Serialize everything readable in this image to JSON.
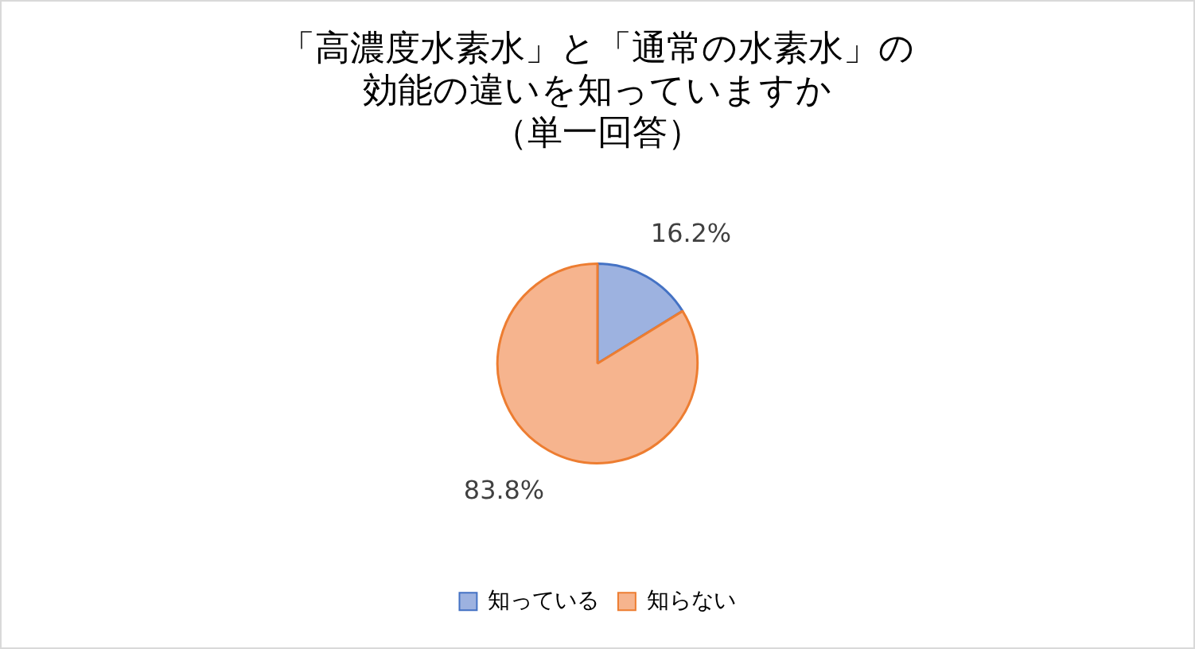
{
  "chart_data": {
    "type": "pie",
    "title": "「高濃度水素水」と「通常の水素水」の効能の違いを知っていますか",
    "subtitle": "（単一回答）",
    "categories": [
      "知っている",
      "知らない"
    ],
    "values": [
      16.2,
      83.8
    ],
    "colors": [
      "#9db2e0",
      "#f6b48e"
    ],
    "value_labels": [
      "16.2%",
      "83.8%"
    ],
    "legend": "bottom"
  }
}
